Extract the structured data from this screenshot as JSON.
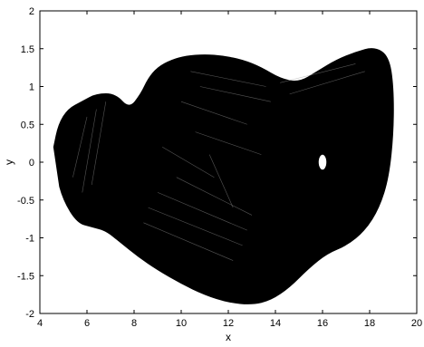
{
  "chart_data": {
    "type": "scatter",
    "title": "",
    "xlabel": "x",
    "ylabel": "y",
    "xlim": [
      4,
      20
    ],
    "ylim": [
      -2,
      2
    ],
    "xticks": [
      4,
      6,
      8,
      10,
      12,
      14,
      16,
      18,
      20
    ],
    "yticks": [
      -2,
      -1.5,
      -1,
      -0.5,
      0,
      0.5,
      1,
      1.5,
      2
    ],
    "xtick_labels": [
      "4",
      "6",
      "8",
      "10",
      "12",
      "14",
      "16",
      "18",
      "20"
    ],
    "ytick_labels": [
      "-2",
      "-1.5",
      "-1",
      "-0.5",
      "0",
      "0.5",
      "1",
      "1.5",
      "2"
    ],
    "grid": false,
    "legend": "none",
    "series": [
      {
        "color": "#000000",
        "points": [
          [
            4.6,
            0.2
          ],
          [
            4.8,
            0.5
          ],
          [
            5.2,
            0.7
          ],
          [
            5.8,
            0.8
          ],
          [
            6.4,
            0.9
          ],
          [
            7.2,
            0.9
          ],
          [
            7.8,
            0.7
          ],
          [
            8.3,
            0.9
          ],
          [
            8.6,
            1.1
          ],
          [
            9.0,
            1.25
          ],
          [
            9.6,
            1.35
          ],
          [
            10.2,
            1.4
          ],
          [
            11.0,
            1.42
          ],
          [
            11.8,
            1.4
          ],
          [
            12.6,
            1.35
          ],
          [
            13.4,
            1.25
          ],
          [
            14.2,
            1.1
          ],
          [
            15.0,
            1.05
          ],
          [
            15.8,
            1.2
          ],
          [
            16.6,
            1.35
          ],
          [
            17.4,
            1.45
          ],
          [
            18.2,
            1.52
          ],
          [
            18.8,
            1.4
          ],
          [
            19.0,
            1.0
          ],
          [
            19.0,
            0.4
          ],
          [
            18.8,
            -0.2
          ],
          [
            18.4,
            -0.6
          ],
          [
            17.8,
            -0.9
          ],
          [
            17.0,
            -1.1
          ],
          [
            16.2,
            -1.2
          ],
          [
            15.4,
            -1.4
          ],
          [
            14.6,
            -1.65
          ],
          [
            13.8,
            -1.82
          ],
          [
            13.0,
            -1.88
          ],
          [
            12.0,
            -1.85
          ],
          [
            11.0,
            -1.75
          ],
          [
            10.0,
            -1.6
          ],
          [
            9.0,
            -1.42
          ],
          [
            8.2,
            -1.25
          ],
          [
            7.4,
            -1.05
          ],
          [
            6.8,
            -0.9
          ],
          [
            6.2,
            -0.85
          ],
          [
            5.6,
            -0.8
          ],
          [
            5.0,
            -0.5
          ],
          [
            4.7,
            -0.15
          ]
        ]
      }
    ],
    "hole": {
      "x": 16.0,
      "y": 0.0
    }
  }
}
